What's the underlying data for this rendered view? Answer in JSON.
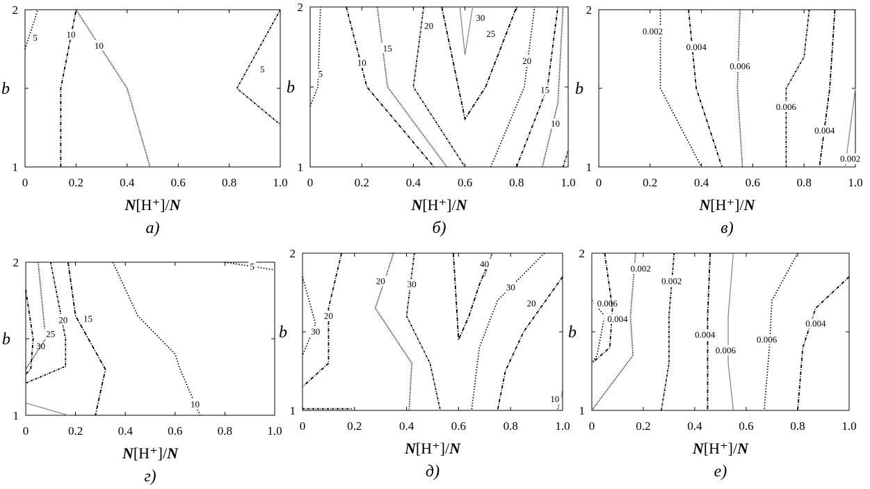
{
  "chart_data": [
    {
      "type": "contour",
      "panel_label": "а)",
      "xlabel": "N[H⁺]/N",
      "ylabel": "b",
      "xlim": [
        0,
        1.0
      ],
      "ylim": [
        1,
        2
      ],
      "xticks": [
        "0",
        "0.2",
        "0.4",
        "0.6",
        "0.8",
        "1.0"
      ],
      "yticks": [
        "1",
        "",
        "2"
      ],
      "contours": [
        {
          "level": "5",
          "points": [
            [
              0,
              1.75
            ],
            [
              0.05,
              2
            ]
          ],
          "label_at": [
            0.04,
            1.82
          ]
        },
        {
          "level": "10",
          "points": [
            [
              0.14,
              1
            ],
            [
              0.14,
              1.5
            ],
            [
              0.2,
              2
            ]
          ],
          "label_at": [
            0.18,
            1.84
          ]
        },
        {
          "level": "10",
          "points": [
            [
              0.2,
              2
            ],
            [
              0.4,
              1.5
            ],
            [
              0.49,
              1
            ]
          ],
          "label_at": [
            0.29,
            1.77
          ]
        },
        {
          "level": "5",
          "points": [
            [
              1.0,
              2
            ],
            [
              0.83,
              1.5
            ],
            [
              1.0,
              1.27
            ]
          ],
          "label_at": [
            0.93,
            1.62
          ]
        }
      ]
    },
    {
      "type": "contour",
      "panel_label": "б)",
      "xlabel": "N[H⁺]/N",
      "ylabel": "b",
      "xlim": [
        0,
        1.0
      ],
      "ylim": [
        1,
        2
      ],
      "xticks": [
        "0",
        "0.2",
        "0.4",
        "0.6",
        "0.8",
        "1.0"
      ],
      "yticks": [
        "1",
        "",
        "2"
      ],
      "contours": [
        {
          "level": "5",
          "points": [
            [
              0,
              1.38
            ],
            [
              0.03,
              1.5
            ],
            [
              0.04,
              2
            ]
          ],
          "label_at": [
            0.04,
            1.58
          ]
        },
        {
          "level": "10",
          "points": [
            [
              0.14,
              2
            ],
            [
              0.22,
              1.5
            ],
            [
              0.48,
              1
            ]
          ],
          "label_at": [
            0.2,
            1.65
          ]
        },
        {
          "level": "15",
          "points": [
            [
              0.26,
              2
            ],
            [
              0.3,
              1.5
            ],
            [
              0.53,
              1
            ]
          ],
          "label_at": [
            0.3,
            1.74
          ]
        },
        {
          "level": "20",
          "points": [
            [
              0.44,
              2
            ],
            [
              0.4,
              1.5
            ],
            [
              0.6,
              1
            ]
          ],
          "label_at": [
            0.46,
            1.88
          ]
        },
        {
          "level": "25",
          "points": [
            [
              0.51,
              2
            ],
            [
              0.6,
              1.3
            ],
            [
              0.68,
              1.5
            ],
            [
              0.8,
              2
            ]
          ],
          "label_at": [
            0.7,
            1.83
          ]
        },
        {
          "level": "30",
          "points": [
            [
              0.58,
              2
            ],
            [
              0.6,
              1.7
            ],
            [
              0.63,
              2
            ]
          ],
          "label_at": [
            0.66,
            1.93
          ]
        },
        {
          "level": "20",
          "points": [
            [
              0.7,
              1
            ],
            [
              0.83,
              1.5
            ],
            [
              0.87,
              2
            ]
          ],
          "label_at": [
            0.84,
            1.66
          ]
        },
        {
          "level": "15",
          "points": [
            [
              0.8,
              1
            ],
            [
              0.92,
              1.5
            ],
            [
              0.96,
              2
            ]
          ],
          "label_at": [
            0.91,
            1.48
          ]
        },
        {
          "level": "10",
          "points": [
            [
              0.9,
              1
            ],
            [
              0.96,
              1.4
            ],
            [
              0.98,
              2
            ]
          ],
          "label_at": [
            0.95,
            1.27
          ]
        },
        {
          "level": "",
          "points": [
            [
              0.98,
              1
            ],
            [
              1.0,
              1.1
            ]
          ],
          "label_at": null
        }
      ]
    },
    {
      "type": "contour",
      "panel_label": "в)",
      "xlabel": "N[H⁺]/N",
      "ylabel": "b",
      "xlim": [
        0,
        1.0
      ],
      "ylim": [
        1,
        2
      ],
      "xticks": [
        "0",
        "0.2",
        "0.4",
        "0.6",
        "0.8",
        "1.0"
      ],
      "yticks": [
        "1",
        "",
        "2"
      ],
      "contours": [
        {
          "level": "0.002",
          "points": [
            [
              0.24,
              2
            ],
            [
              0.24,
              1.5
            ],
            [
              0.4,
              1
            ]
          ],
          "label_at": [
            0.21,
            1.86
          ]
        },
        {
          "level": "0.004",
          "points": [
            [
              0.35,
              2
            ],
            [
              0.38,
              1.5
            ],
            [
              0.48,
              1
            ]
          ],
          "label_at": [
            0.38,
            1.76
          ]
        },
        {
          "level": "0.006",
          "points": [
            [
              0.55,
              2
            ],
            [
              0.54,
              1.5
            ],
            [
              0.56,
              1
            ]
          ],
          "label_at": [
            0.55,
            1.64
          ]
        },
        {
          "level": "0.006",
          "points": [
            [
              0.82,
              2
            ],
            [
              0.8,
              1.7
            ],
            [
              0.73,
              1.5
            ],
            [
              0.73,
              1
            ]
          ],
          "label_at": [
            0.73,
            1.38
          ]
        },
        {
          "level": "0.004",
          "points": [
            [
              0.92,
              2
            ],
            [
              0.9,
              1.5
            ],
            [
              0.86,
              1
            ]
          ],
          "label_at": [
            0.88,
            1.23
          ]
        },
        {
          "level": "0.002",
          "points": [
            [
              1.0,
              1.5
            ],
            [
              0.96,
              1
            ]
          ],
          "label_at": [
            0.98,
            1.05
          ]
        }
      ]
    },
    {
      "type": "contour",
      "panel_label": "г)",
      "xlabel": "N[H⁺]/N",
      "ylabel": "b",
      "xlim": [
        0,
        1.0
      ],
      "ylim": [
        1,
        2
      ],
      "xticks": [
        "0",
        "0.2",
        "0.4",
        "0.6",
        "0.8",
        "1.0"
      ],
      "yticks": [
        "1",
        "",
        "2"
      ],
      "contours": [
        {
          "level": "5",
          "points": [
            [
              0.8,
              2
            ],
            [
              1.0,
              1.95
            ]
          ],
          "label_at": [
            0.91,
            1.97
          ]
        },
        {
          "level": "30",
          "points": [
            [
              0,
              1.82
            ],
            [
              0.03,
              1.5
            ],
            [
              0.02,
              1.3
            ],
            [
              0,
              1.27
            ]
          ],
          "label_at": [
            0.06,
            1.45
          ]
        },
        {
          "level": "25",
          "points": [
            [
              0.05,
              2
            ],
            [
              0.08,
              1.5
            ],
            [
              0,
              1.3
            ]
          ],
          "label_at": [
            0.1,
            1.53
          ]
        },
        {
          "level": "20",
          "points": [
            [
              0.1,
              2
            ],
            [
              0.16,
              1.5
            ],
            [
              0.16,
              1.32
            ],
            [
              0,
              1.21
            ]
          ],
          "label_at": [
            0.15,
            1.62
          ]
        },
        {
          "level": "15",
          "points": [
            [
              0.17,
              2
            ],
            [
              0.2,
              1.65
            ],
            [
              0.32,
              1.3
            ],
            [
              0.28,
              1
            ]
          ],
          "label_at": [
            0.25,
            1.63
          ]
        },
        {
          "level": "",
          "points": [
            [
              0,
              1.08
            ],
            [
              0.17,
              1
            ]
          ],
          "label_at": null
        },
        {
          "level": "10",
          "points": [
            [
              0.35,
              2
            ],
            [
              0.45,
              1.65
            ],
            [
              0.6,
              1.4
            ],
            [
              0.62,
              1.3
            ],
            [
              0.7,
              1
            ]
          ],
          "label_at": [
            0.68,
            1.07
          ]
        }
      ]
    },
    {
      "type": "contour",
      "panel_label": "д)",
      "xlabel": "N[H⁺]/N",
      "ylabel": "b",
      "xlim": [
        0,
        1.0
      ],
      "ylim": [
        1,
        2
      ],
      "xticks": [
        "0",
        "0.2",
        "0.4",
        "0.6",
        "0.8",
        "1.0"
      ],
      "yticks": [
        "1",
        "",
        "2"
      ],
      "contours": [
        {
          "level": "30",
          "points": [
            [
              0,
              1.85
            ],
            [
              0.05,
              1.55
            ],
            [
              0,
              1.35
            ]
          ],
          "label_at": [
            0.05,
            1.5
          ]
        },
        {
          "level": "20",
          "points": [
            [
              0.15,
              2
            ],
            [
              0.1,
              1.65
            ],
            [
              0.1,
              1.3
            ],
            [
              0,
              1.15
            ]
          ],
          "label_at": [
            0.1,
            1.6
          ]
        },
        {
          "level": "20",
          "points": [
            [
              0.35,
              2
            ],
            [
              0.28,
              1.65
            ],
            [
              0.42,
              1.3
            ],
            [
              0.41,
              1
            ]
          ],
          "label_at": [
            0.3,
            1.82
          ]
        },
        {
          "level": "30",
          "points": [
            [
              0.43,
              2
            ],
            [
              0.4,
              1.6
            ],
            [
              0.49,
              1.3
            ],
            [
              0.53,
              1
            ]
          ],
          "label_at": [
            0.42,
            1.8
          ]
        },
        {
          "level": "",
          "points": [
            [
              0.58,
              2
            ],
            [
              0.6,
              1.45
            ],
            [
              0.64,
              1.6
            ],
            [
              0.68,
              1.8
            ],
            [
              0.73,
              2
            ]
          ],
          "label_at": null
        },
        {
          "level": "40",
          "points": [
            [
              0.7,
              1.85
            ],
            [
              0.73,
              2
            ]
          ],
          "label_at": [
            0.7,
            1.93
          ]
        },
        {
          "level": "30",
          "points": [
            [
              0.93,
              2
            ],
            [
              0.75,
              1.7
            ],
            [
              0.68,
              1.4
            ],
            [
              0.65,
              1
            ]
          ],
          "label_at": [
            0.8,
            1.78
          ]
        },
        {
          "level": "20",
          "points": [
            [
              1.0,
              1.85
            ],
            [
              0.85,
              1.5
            ],
            [
              0.78,
              1.25
            ],
            [
              0.75,
              1
            ]
          ],
          "label_at": [
            0.88,
            1.68
          ]
        },
        {
          "level": "10",
          "points": [
            [
              1.0,
              1.12
            ],
            [
              0.98,
              1
            ]
          ],
          "label_at": [
            0.97,
            1.07
          ]
        },
        {
          "level": "",
          "points": [
            [
              0,
              1.01
            ],
            [
              0.19,
              1.01
            ]
          ],
          "label_at": null
        }
      ]
    },
    {
      "type": "contour",
      "panel_label": "е)",
      "xlabel": "N[H⁺]/N",
      "ylabel": "b",
      "xlim": [
        0,
        1.0
      ],
      "ylim": [
        1,
        2
      ],
      "xticks": [
        "0",
        "0.2",
        "0.4",
        "0.6",
        "0.8",
        "1.0"
      ],
      "yticks": [
        "1",
        "",
        "2"
      ],
      "contours": [
        {
          "level": "0.006",
          "points": [
            [
              0,
              1.7
            ],
            [
              0.05,
              1.6
            ],
            [
              0.02,
              1.35
            ],
            [
              0,
              1.3
            ]
          ],
          "label_at": [
            0.06,
            1.68
          ]
        },
        {
          "level": "0.004",
          "points": [
            [
              0.05,
              2
            ],
            [
              0.08,
              1.65
            ],
            [
              0.07,
              1.4
            ],
            [
              0,
              1.3
            ]
          ],
          "label_at": [
            0.1,
            1.58
          ]
        },
        {
          "level": "0.002",
          "points": [
            [
              0.17,
              2
            ],
            [
              0.15,
              1.6
            ],
            [
              0.16,
              1.35
            ],
            [
              0,
              1
            ]
          ],
          "label_at": [
            0.19,
            1.9
          ]
        },
        {
          "level": "0.002",
          "points": [
            [
              0.32,
              2
            ],
            [
              0.3,
              1.6
            ],
            [
              0.3,
              1.3
            ],
            [
              0.27,
              1
            ]
          ],
          "label_at": [
            0.31,
            1.82
          ]
        },
        {
          "level": "0.004",
          "points": [
            [
              0.46,
              2
            ],
            [
              0.45,
              1.6
            ],
            [
              0.45,
              1.3
            ],
            [
              0.45,
              1
            ]
          ],
          "label_at": [
            0.44,
            1.48
          ]
        },
        {
          "level": "0.006",
          "points": [
            [
              0.55,
              2
            ],
            [
              0.53,
              1.6
            ],
            [
              0.53,
              1.3
            ],
            [
              0.55,
              1
            ]
          ],
          "label_at": [
            0.52,
            1.38
          ]
        },
        {
          "level": "0.006",
          "points": [
            [
              0.8,
              2
            ],
            [
              0.7,
              1.7
            ],
            [
              0.69,
              1.4
            ],
            [
              0.67,
              1
            ]
          ],
          "label_at": [
            0.68,
            1.45
          ]
        },
        {
          "level": "0.004",
          "points": [
            [
              1.0,
              1.85
            ],
            [
              0.87,
              1.65
            ],
            [
              0.82,
              1.4
            ],
            [
              0.8,
              1
            ]
          ],
          "label_at": [
            0.87,
            1.55
          ]
        }
      ]
    }
  ]
}
